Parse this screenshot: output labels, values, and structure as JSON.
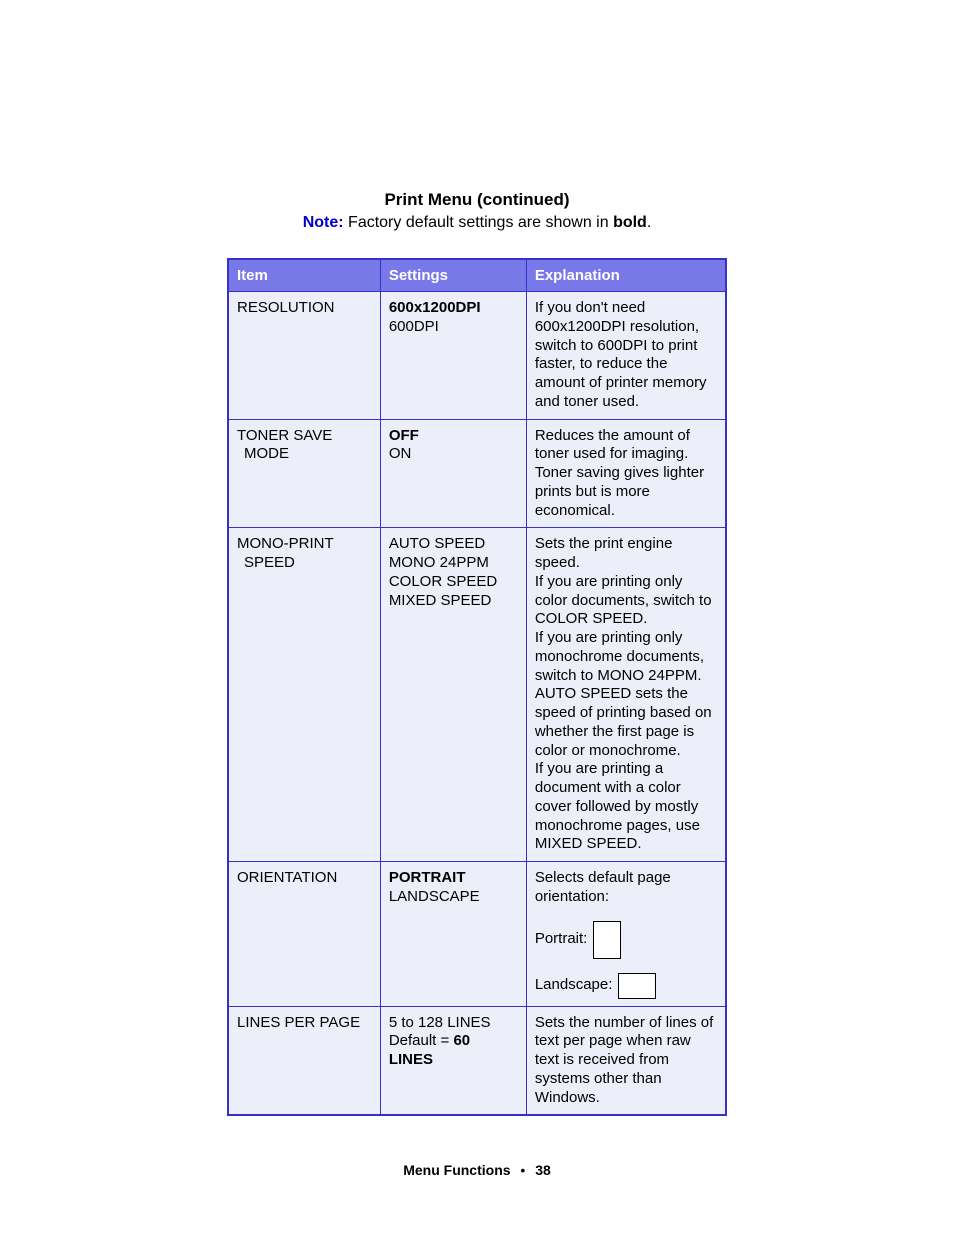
{
  "title": "Print Menu (continued)",
  "note": {
    "label": "Note:",
    "text_before": " Factory default settings are shown in ",
    "bold_word": "bold",
    "period": "."
  },
  "headers": {
    "item": "Item",
    "settings": "Settings",
    "explanation": "Explanation"
  },
  "rows": {
    "resolution": {
      "item": "RESOLUTION",
      "settings_bold": "600x1200DPI",
      "settings_rest": "600DPI",
      "explanation": "If you don't need 600x1200DPI resolution, switch to 600DPI to print faster, to reduce the amount of printer memory and toner used."
    },
    "tonersave": {
      "item_l1": "TONER SAVE",
      "item_l2": "MODE",
      "settings_bold": "OFF",
      "settings_rest": "ON",
      "explanation": "Reduces the amount of toner used for imaging. Toner saving gives lighter prints but is more economical."
    },
    "monoprint": {
      "item_l1": "MONO-PRINT",
      "item_l2": "SPEED",
      "settings_l1": "AUTO SPEED",
      "settings_l2": "MONO 24PPM",
      "settings_l3": "COLOR SPEED",
      "settings_l4": "MIXED SPEED",
      "exp_l1": "Sets the print engine speed.",
      "exp_l2": "If you are printing only color documents, switch to COLOR SPEED.",
      "exp_l3": "If you are printing only monochrome documents, switch to MONO 24PPM.",
      "exp_l4": "AUTO SPEED sets the speed of printing based on whether the first page is color or monochrome.",
      "exp_l5": "If you are printing a document with a color cover followed by mostly monochrome pages, use MIXED SPEED."
    },
    "orientation": {
      "item": "ORIENTATION",
      "settings_bold": "PORTRAIT",
      "settings_rest": "LANDSCAPE",
      "exp_intro": "Selects default page orientation:",
      "portrait_label": "Portrait:",
      "landscape_label": "Landscape:"
    },
    "linesperpage": {
      "item": "LINES PER PAGE",
      "settings_l1": "5 to 128 LINES",
      "settings_default_label": "Default = ",
      "settings_default_bold": "60 LINES",
      "explanation": "Sets the number of lines of text per page when raw text is received from systems other than Windows."
    }
  },
  "footer": {
    "section": "Menu Functions",
    "page": "38"
  }
}
